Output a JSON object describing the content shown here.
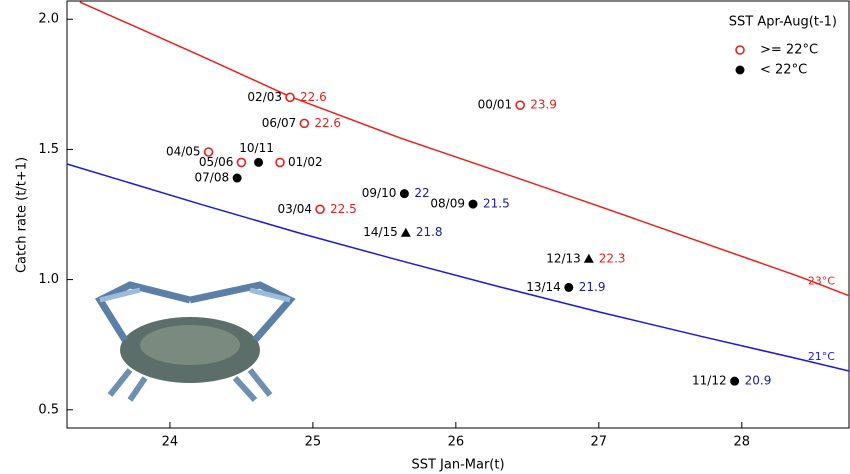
{
  "chart_data": {
    "type": "scatter",
    "xlabel": "SST Jan-Mar(t)",
    "ylabel": "Catch rate (t/t+1)",
    "xlim": [
      23.28,
      28.75
    ],
    "ylim": [
      0.43,
      2.07
    ],
    "xticks": [
      24,
      25,
      26,
      27,
      28
    ],
    "yticks": [
      {
        "value": 0.5,
        "label": "0.5"
      },
      {
        "value": 1.0,
        "label": "1.0"
      },
      {
        "value": 1.5,
        "label": "1.5"
      },
      {
        "value": 2.0,
        "label": "2.0"
      }
    ],
    "points": [
      {
        "label": "02/03",
        "x": 24.84,
        "y": 1.7,
        "sst": 22.6,
        "marker": "open-circle",
        "color": "#e8201c"
      },
      {
        "label": "00/01",
        "x": 26.45,
        "y": 1.67,
        "sst": 23.9,
        "marker": "open-circle",
        "color": "#e8201c"
      },
      {
        "label": "06/07",
        "x": 24.94,
        "y": 1.6,
        "sst": 22.6,
        "marker": "open-circle",
        "color": "#e8201c"
      },
      {
        "label": "04/05",
        "x": 24.27,
        "y": 1.49,
        "marker": "open-circle",
        "color": "#e8201c"
      },
      {
        "label": "05/06",
        "x": 24.5,
        "y": 1.45,
        "marker": "open-circle",
        "color": "#e8201c"
      },
      {
        "label": "10/11",
        "x": 24.62,
        "y": 1.45,
        "marker": "filled-circle",
        "color": "#000000"
      },
      {
        "label": "01/02",
        "x": 24.77,
        "y": 1.45,
        "marker": "open-circle",
        "color": "#e8201c"
      },
      {
        "label": "07/08",
        "x": 24.47,
        "y": 1.39,
        "marker": "filled-circle",
        "color": "#000000"
      },
      {
        "label": "03/04",
        "x": 25.05,
        "y": 1.27,
        "sst": 22.5,
        "marker": "open-circle",
        "color": "#e8201c"
      },
      {
        "label": "09/10",
        "x": 25.64,
        "y": 1.33,
        "sst": 22,
        "marker": "filled-circle",
        "color": "#000000",
        "sst_color": "#1a1aa0"
      },
      {
        "label": "08/09",
        "x": 26.12,
        "y": 1.29,
        "sst": 21.5,
        "marker": "filled-circle",
        "color": "#000000",
        "sst_color": "#1a1aa0"
      },
      {
        "label": "14/15",
        "x": 25.65,
        "y": 1.18,
        "sst": 21.8,
        "marker": "triangle",
        "color": "#000000",
        "sst_color": "#1a1aa0"
      },
      {
        "label": "12/13",
        "x": 26.93,
        "y": 1.08,
        "sst": 22.3,
        "marker": "triangle",
        "color": "#000000",
        "sst_color": "#e8201c"
      },
      {
        "label": "13/14",
        "x": 26.79,
        "y": 0.97,
        "sst": 21.9,
        "marker": "filled-circle",
        "color": "#000000",
        "sst_color": "#1a1aa0"
      },
      {
        "label": "11/12",
        "x": 27.95,
        "y": 0.61,
        "sst": 20.9,
        "marker": "filled-circle",
        "color": "#000000",
        "sst_color": "#1a1aa0"
      }
    ],
    "curves": [
      {
        "name": "23°C",
        "color": "#e8201c",
        "x": [
          23.37,
          24.21,
          24.84,
          25.61,
          26.31,
          27.0,
          27.7,
          28.4,
          28.75
        ],
        "values": [
          2.066,
          1.861,
          1.703,
          1.544,
          1.413,
          1.282,
          1.147,
          1.012,
          0.938
        ]
      },
      {
        "name": "21°C",
        "color": "#1a1ae0",
        "x": [
          23.28,
          24.21,
          24.91,
          25.61,
          26.3,
          27.0,
          27.7,
          28.4,
          28.75
        ],
        "values": [
          1.444,
          1.29,
          1.178,
          1.073,
          0.973,
          0.876,
          0.784,
          0.695,
          0.649
        ]
      }
    ],
    "legend": {
      "title": "SST Apr-Aug(t-1)",
      "position": "upper right",
      "entries": [
        {
          "label": ">= 22°C",
          "marker": "open-circle",
          "color": "#e8201c"
        },
        {
          "label": "< 22°C",
          "marker": "filled-circle",
          "color": "#000000"
        }
      ]
    }
  }
}
